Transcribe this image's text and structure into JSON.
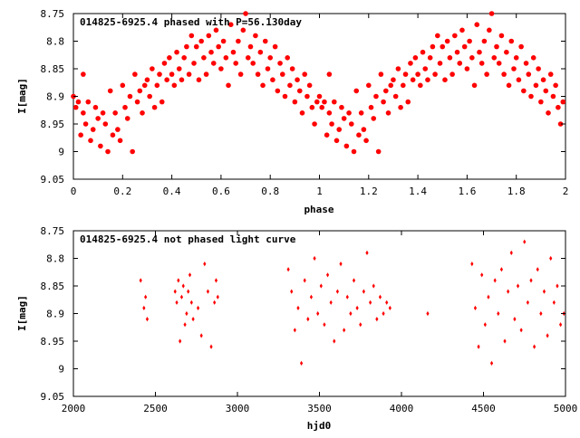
{
  "chart_data": [
    {
      "type": "scatter",
      "title": "014825-6925.4 phased with P=56.130day",
      "xlabel": "phase",
      "ylabel": "I[mag]",
      "xlim": [
        0,
        2
      ],
      "ylim": [
        9.05,
        8.75
      ],
      "y_inverted": true,
      "grid": false,
      "marker_color": "#ff0000",
      "x_ticks": [
        0,
        0.2,
        0.4,
        0.6,
        0.8,
        1,
        1.2,
        1.4,
        1.6,
        1.8,
        2
      ],
      "x_tick_labels": [
        "0",
        "0.2",
        "0.4",
        "0.6",
        "0.8",
        "1",
        "1.2",
        "1.4",
        "1.6",
        "1.8",
        "2"
      ],
      "y_ticks": [
        8.75,
        8.8,
        8.85,
        8.9,
        8.95,
        9,
        9.05
      ],
      "y_tick_labels": [
        "8.75",
        "8.8",
        "8.85",
        "8.9",
        "8.95",
        "9",
        "9.05"
      ],
      "series": [
        {
          "x": [
            0.0,
            0.01,
            0.02,
            0.03,
            0.04,
            0.04,
            0.05,
            0.06,
            0.07,
            0.08,
            0.09,
            0.1,
            0.11,
            0.12,
            0.13,
            0.14,
            0.15,
            0.16,
            0.17,
            0.18,
            0.19,
            0.2,
            0.21,
            0.22,
            0.23,
            0.24,
            0.25,
            0.26,
            0.27,
            0.28,
            0.29,
            0.3,
            0.31,
            0.32,
            0.33,
            0.34,
            0.35,
            0.36,
            0.37,
            0.38,
            0.39,
            0.4,
            0.41,
            0.42,
            0.43,
            0.44,
            0.45,
            0.46,
            0.47,
            0.48,
            0.49,
            0.5,
            0.51,
            0.52,
            0.53,
            0.54,
            0.55,
            0.56,
            0.57,
            0.58,
            0.59,
            0.6,
            0.61,
            0.62,
            0.63,
            0.64,
            0.65,
            0.66,
            0.67,
            0.68,
            0.69,
            0.7,
            0.71,
            0.72,
            0.73,
            0.74,
            0.75,
            0.76,
            0.77,
            0.78,
            0.79,
            0.8,
            0.81,
            0.82,
            0.83,
            0.84,
            0.85,
            0.86,
            0.87,
            0.88,
            0.89,
            0.9,
            0.91,
            0.92,
            0.93,
            0.94,
            0.95,
            0.96,
            0.97,
            0.98,
            0.99
          ],
          "y": [
            8.9,
            8.92,
            8.91,
            8.97,
            8.86,
            8.93,
            8.95,
            8.91,
            8.98,
            8.96,
            8.92,
            8.94,
            8.99,
            8.93,
            8.95,
            9.0,
            8.89,
            8.97,
            8.93,
            8.96,
            8.98,
            8.88,
            8.92,
            8.94,
            8.9,
            9.0,
            8.86,
            8.91,
            8.89,
            8.93,
            8.88,
            8.87,
            8.9,
            8.85,
            8.92,
            8.88,
            8.86,
            8.91,
            8.84,
            8.87,
            8.83,
            8.86,
            8.88,
            8.82,
            8.85,
            8.87,
            8.83,
            8.81,
            8.86,
            8.79,
            8.84,
            8.81,
            8.87,
            8.8,
            8.83,
            8.86,
            8.79,
            8.82,
            8.84,
            8.78,
            8.81,
            8.85,
            8.8,
            8.83,
            8.88,
            8.77,
            8.82,
            8.84,
            8.8,
            8.86,
            8.78,
            8.75,
            8.83,
            8.81,
            8.84,
            8.79,
            8.86,
            8.82,
            8.88,
            8.8,
            8.85,
            8.83,
            8.87,
            8.81,
            8.89,
            8.84,
            8.86,
            8.9,
            8.83,
            8.88,
            8.85,
            8.91,
            8.87,
            8.89,
            8.93,
            8.86,
            8.9,
            8.88,
            8.92,
            8.95,
            8.91
          ]
        }
      ]
    },
    {
      "type": "scatter",
      "title": "014825-6925.4 not phased light curve",
      "xlabel": "hjd0",
      "ylabel": "I[mag]",
      "xlim": [
        2000,
        5000
      ],
      "ylim": [
        9.05,
        8.75
      ],
      "y_inverted": true,
      "grid": false,
      "marker_color": "#ff0000",
      "x_ticks": [
        2000,
        2500,
        3000,
        3500,
        4000,
        4500,
        5000
      ],
      "x_tick_labels": [
        "2000",
        "2500",
        "3000",
        "3500",
        "4000",
        "4500",
        "5000"
      ],
      "y_ticks": [
        8.75,
        8.8,
        8.85,
        8.9,
        8.95,
        9,
        9.05
      ],
      "y_tick_labels": [
        "8.75",
        "8.8",
        "8.85",
        "8.9",
        "8.95",
        "9",
        "9.05"
      ],
      "series": [
        {
          "x": [
            2410,
            2430,
            2440,
            2450,
            2620,
            2630,
            2640,
            2650,
            2660,
            2670,
            2680,
            2690,
            2700,
            2710,
            2720,
            2730,
            2760,
            2780,
            2800,
            2820,
            2840,
            2860,
            2870,
            2880,
            3310,
            3330,
            3350,
            3370,
            3390,
            3410,
            3430,
            3450,
            3470,
            3490,
            3510,
            3530,
            3550,
            3570,
            3590,
            3610,
            3630,
            3650,
            3670,
            3690,
            3710,
            3730,
            3750,
            3770,
            3790,
            3810,
            3830,
            3850,
            3870,
            3890,
            3910,
            3930,
            4160,
            4430,
            4450,
            4470,
            4490,
            4510,
            4530,
            4550,
            4570,
            4590,
            4610,
            4630,
            4650,
            4670,
            4690,
            4710,
            4730,
            4750,
            4770,
            4790,
            4810,
            4830,
            4850,
            4870,
            4890,
            4910,
            4930,
            4950,
            4970,
            4990
          ],
          "y": [
            8.84,
            8.89,
            8.87,
            8.91,
            8.86,
            8.88,
            8.84,
            8.95,
            8.87,
            8.85,
            8.92,
            8.9,
            8.86,
            8.83,
            8.88,
            8.91,
            8.89,
            8.94,
            8.81,
            8.86,
            8.96,
            8.88,
            8.84,
            8.87,
            8.82,
            8.86,
            8.93,
            8.89,
            8.99,
            8.84,
            8.91,
            8.87,
            8.8,
            8.9,
            8.85,
            8.92,
            8.83,
            8.88,
            8.95,
            8.86,
            8.81,
            8.93,
            8.87,
            8.9,
            8.84,
            8.89,
            8.92,
            8.86,
            8.79,
            8.88,
            8.85,
            8.91,
            8.87,
            8.9,
            8.88,
            8.89,
            8.9,
            8.81,
            8.89,
            8.96,
            8.83,
            8.92,
            8.87,
            8.99,
            8.84,
            8.9,
            8.82,
            8.95,
            8.86,
            8.79,
            8.91,
            8.85,
            8.93,
            8.77,
            8.88,
            8.84,
            8.96,
            8.82,
            8.9,
            8.86,
            8.94,
            8.8,
            8.88,
            8.85,
            8.92,
            8.9
          ]
        }
      ]
    }
  ]
}
